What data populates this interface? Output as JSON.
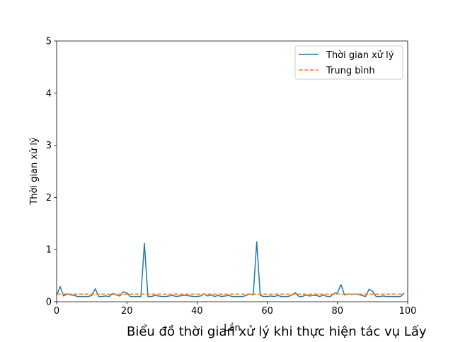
{
  "chart_data": {
    "type": "line",
    "title": "Biểu đồ thời gian xử lý khi thực hiện tác vụ Lấy",
    "xlabel": "Lần",
    "ylabel": "Thời gian xử lý",
    "xlim": [
      0,
      100
    ],
    "ylim": [
      0,
      5
    ],
    "xticks": [
      0,
      20,
      40,
      60,
      80,
      100
    ],
    "yticks": [
      0,
      1,
      2,
      3,
      4,
      5
    ],
    "grid": false,
    "legend": "top-right",
    "series": [
      {
        "name": "Thời gian xử lý",
        "style": "solid",
        "color": "#1f77b4",
        "x": [
          0,
          1,
          2,
          3,
          4,
          5,
          6,
          7,
          8,
          9,
          10,
          11,
          12,
          13,
          14,
          15,
          16,
          17,
          18,
          19,
          20,
          21,
          22,
          23,
          24,
          25,
          26,
          27,
          28,
          29,
          30,
          31,
          32,
          33,
          34,
          35,
          36,
          37,
          38,
          39,
          40,
          41,
          42,
          43,
          44,
          45,
          46,
          47,
          48,
          49,
          50,
          51,
          52,
          53,
          54,
          55,
          56,
          57,
          58,
          59,
          60,
          61,
          62,
          63,
          64,
          65,
          66,
          67,
          68,
          69,
          70,
          71,
          72,
          73,
          74,
          75,
          76,
          77,
          78,
          79,
          80,
          81,
          82,
          83,
          84,
          85,
          86,
          87,
          88,
          89,
          90,
          91,
          92,
          93,
          94,
          95,
          96,
          97,
          98,
          99
        ],
        "y": [
          0.12,
          0.29,
          0.11,
          0.15,
          0.13,
          0.12,
          0.1,
          0.1,
          0.1,
          0.1,
          0.12,
          0.25,
          0.1,
          0.1,
          0.11,
          0.1,
          0.16,
          0.13,
          0.11,
          0.19,
          0.17,
          0.1,
          0.1,
          0.1,
          0.1,
          1.12,
          0.1,
          0.1,
          0.12,
          0.11,
          0.1,
          0.1,
          0.11,
          0.12,
          0.1,
          0.11,
          0.12,
          0.12,
          0.11,
          0.1,
          0.1,
          0.11,
          0.15,
          0.11,
          0.13,
          0.1,
          0.12,
          0.1,
          0.11,
          0.12,
          0.1,
          0.1,
          0.1,
          0.1,
          0.12,
          0.15,
          0.13,
          1.15,
          0.12,
          0.1,
          0.1,
          0.11,
          0.1,
          0.12,
          0.1,
          0.1,
          0.1,
          0.13,
          0.17,
          0.1,
          0.1,
          0.13,
          0.11,
          0.12,
          0.12,
          0.1,
          0.13,
          0.1,
          0.1,
          0.16,
          0.17,
          0.33,
          0.13,
          0.15,
          0.14,
          0.15,
          0.14,
          0.12,
          0.1,
          0.24,
          0.2,
          0.1,
          0.1,
          0.11,
          0.1,
          0.1,
          0.1,
          0.1,
          0.1,
          0.17
        ]
      },
      {
        "name": "Trung bình",
        "style": "dashed",
        "color": "#ff7f0e",
        "x": [
          0,
          99
        ],
        "y": [
          0.145,
          0.145
        ]
      }
    ]
  }
}
